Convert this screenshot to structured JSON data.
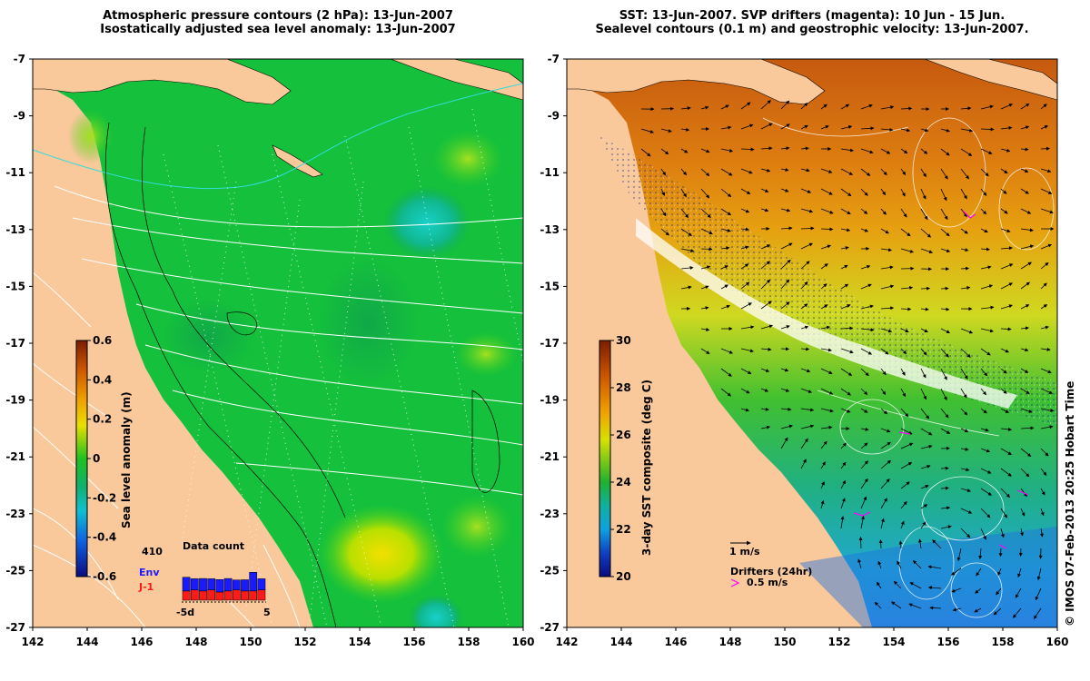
{
  "titles": {
    "left": [
      "Atmospheric pressure contours (2 hPa): 13-Jun-2007",
      "Isostatically adjusted sea level anomaly: 13-Jun-2007"
    ],
    "right": [
      "SST: 13-Jun-2007. SVP drifters (magenta): 10 Jun - 15 Jun.",
      "Sealevel contours (0.1 m) and geostrophic velocity: 13-Jun-2007."
    ]
  },
  "axes": {
    "lon_ticks": [
      "142",
      "144",
      "146",
      "148",
      "150",
      "152",
      "154",
      "156",
      "158",
      "160"
    ],
    "lat_ticks": [
      "-7",
      "-9",
      "-11",
      "-13",
      "-15",
      "-17",
      "-19",
      "-21",
      "-23",
      "-25",
      "-27"
    ]
  },
  "left_colorbar": {
    "label": "Sea level anomaly (m)",
    "ticks": [
      "0.6",
      "0.4",
      "0.2",
      "0",
      "-0.2",
      "-0.4",
      "-0.6"
    ]
  },
  "right_colorbar": {
    "label": "3-day SST composite (deg C)",
    "ticks": [
      "30",
      "28",
      "26",
      "24",
      "22",
      "20"
    ]
  },
  "data_count": {
    "title": "Data count",
    "max": "410",
    "env_label": "Env",
    "j1_label": "J-1",
    "xmin": "-5d",
    "xmax": "5",
    "env_color": "#1a1aff",
    "j1_color": "#ff1a1a",
    "env": [
      0.55,
      0.45,
      0.5,
      0.45,
      0.5,
      0.5,
      0.4,
      0.45,
      0.75,
      0.45
    ],
    "j1": [
      0.45,
      0.5,
      0.45,
      0.5,
      0.4,
      0.45,
      0.5,
      0.45,
      0.45,
      0.5
    ]
  },
  "legend": {
    "velocity_label": "1 m/s",
    "drifters_label": "Drifters (24hr)",
    "drifter_speed_label": "0.5 m/s"
  },
  "credit": "© IMOS 07-Feb-2013 20:25 Hobart Time",
  "colors": {
    "land": "#f9c89b",
    "sla_base": "#12c23b",
    "drifter": "#ff00ff",
    "pressure_contour": "#ffffff",
    "cyan_contour": "#33dddd"
  }
}
